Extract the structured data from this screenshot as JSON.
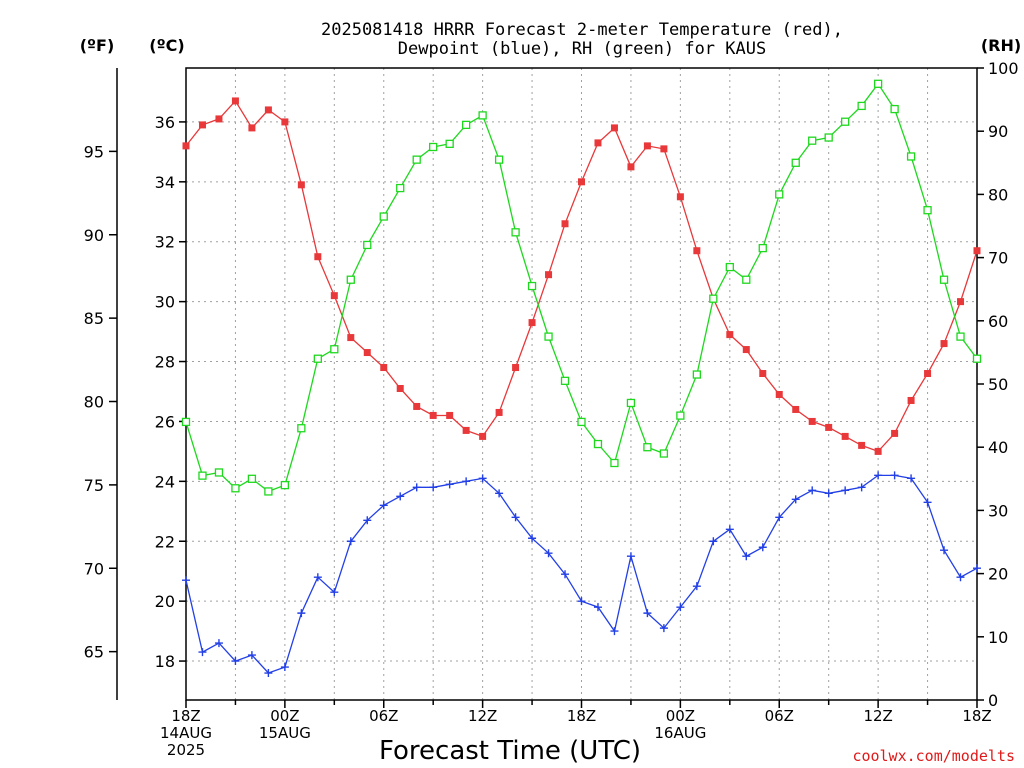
{
  "title_line1": "2025081418 HRRR Forecast 2-meter Temperature (red),",
  "title_line2": "Dewpoint (blue), RH (green) for KAUS",
  "units": {
    "f": "(ºF)",
    "c": "(ºC)",
    "rh": "(RH)"
  },
  "xlabel": "Forecast Time (UTC)",
  "credit": "coolwx.com/modelts",
  "colors": {
    "temperature": "#e8383a",
    "dewpoint": "#2340e6",
    "rh": "#1ed81e"
  },
  "chart_data": {
    "type": "line",
    "x_hours": [
      0,
      1,
      2,
      3,
      4,
      5,
      6,
      7,
      8,
      9,
      10,
      11,
      12,
      13,
      14,
      15,
      16,
      17,
      18,
      19,
      20,
      21,
      22,
      23,
      24,
      25,
      26,
      27,
      28,
      29,
      30,
      31,
      32,
      33,
      34,
      35,
      36,
      37,
      38,
      39,
      40,
      41,
      42,
      43,
      44,
      45,
      46,
      47,
      48
    ],
    "x_tick_labels": [
      {
        "hour": 0,
        "lines": [
          "18Z",
          "14AUG",
          "2025"
        ]
      },
      {
        "hour": 6,
        "lines": [
          "00Z",
          "15AUG"
        ]
      },
      {
        "hour": 12,
        "lines": [
          "06Z"
        ]
      },
      {
        "hour": 18,
        "lines": [
          "12Z"
        ]
      },
      {
        "hour": 24,
        "lines": [
          "18Z"
        ]
      },
      {
        "hour": 30,
        "lines": [
          "00Z",
          "16AUG"
        ]
      },
      {
        "hour": 36,
        "lines": [
          "06Z"
        ]
      },
      {
        "hour": 42,
        "lines": [
          "12Z"
        ]
      },
      {
        "hour": 48,
        "lines": [
          "18Z"
        ]
      }
    ],
    "celsius_axis": {
      "range": [
        16.7,
        37.8
      ],
      "ticks": [
        18,
        20,
        22,
        24,
        26,
        28,
        30,
        32,
        34,
        36
      ]
    },
    "fahrenheit_axis": {
      "range": [
        62.1,
        100.0
      ],
      "ticks": [
        65,
        70,
        75,
        80,
        85,
        90,
        95
      ]
    },
    "rh_axis": {
      "range": [
        0,
        100
      ],
      "ticks": [
        0,
        10,
        20,
        30,
        40,
        50,
        60,
        70,
        80,
        90,
        100
      ]
    },
    "series": [
      {
        "name": "Temperature",
        "axis": "celsius",
        "marker": "filled-square",
        "values": [
          35.2,
          35.9,
          36.1,
          36.7,
          35.8,
          36.4,
          36.0,
          33.9,
          31.5,
          30.2,
          28.8,
          28.3,
          27.8,
          27.1,
          26.5,
          26.2,
          26.2,
          25.7,
          25.5,
          26.3,
          27.8,
          29.3,
          30.9,
          32.6,
          34.0,
          35.3,
          35.8,
          34.5,
          35.2,
          35.1,
          33.5,
          31.7,
          30.1,
          28.9,
          28.4,
          27.6,
          26.9,
          26.4,
          26.0,
          25.8,
          25.5,
          25.2,
          25.0,
          25.6,
          26.7,
          27.6,
          28.6,
          30.0,
          31.7
        ]
      },
      {
        "name": "Dewpoint",
        "axis": "celsius",
        "marker": "plus",
        "values": [
          20.7,
          18.3,
          18.6,
          18.0,
          18.2,
          17.6,
          17.8,
          19.6,
          20.8,
          20.3,
          22.0,
          22.7,
          23.2,
          23.5,
          23.8,
          23.8,
          23.9,
          24.0,
          24.1,
          23.6,
          22.8,
          22.1,
          21.6,
          20.9,
          20.0,
          19.8,
          19.0,
          21.5,
          19.6,
          19.1,
          19.8,
          20.5,
          22.0,
          22.4,
          21.5,
          21.8,
          22.8,
          23.4,
          23.7,
          23.6,
          23.7,
          23.8,
          24.2,
          24.2,
          24.1,
          23.3,
          21.7,
          20.8,
          21.1
        ]
      },
      {
        "name": "RH",
        "axis": "rh",
        "marker": "open-square",
        "values": [
          44,
          35.5,
          36,
          33.5,
          35,
          33,
          34,
          43,
          54,
          55.5,
          66.5,
          72,
          76.5,
          81,
          85.5,
          87.5,
          88,
          91,
          92.5,
          85.5,
          74,
          65.5,
          57.5,
          50.5,
          44,
          40.5,
          37.5,
          47,
          40,
          39,
          45,
          51.5,
          63.5,
          68.5,
          66.5,
          71.5,
          80,
          85,
          88.5,
          89,
          91.5,
          94,
          97.5,
          93.5,
          86,
          77.5,
          66.5,
          57.5,
          54
        ]
      }
    ]
  }
}
